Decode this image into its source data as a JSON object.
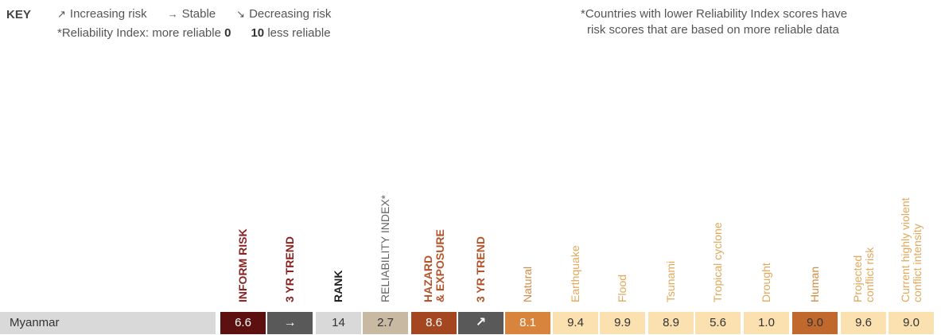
{
  "key": {
    "title": "KEY",
    "items": [
      {
        "icon": "arrow-up-right-icon",
        "glyph": "↗",
        "label": "Increasing risk"
      },
      {
        "icon": "arrow-right-icon",
        "glyph": "→",
        "label": "Stable"
      },
      {
        "icon": "arrow-down-right-icon",
        "glyph": "↘",
        "label": "Decreasing risk"
      }
    ],
    "reliability_prefix": "*Reliability Index: more reliable",
    "reliability_min": "0",
    "reliability_max": "10",
    "reliability_suffix": "less reliable"
  },
  "note": {
    "line1": "*Countries with lower Reliability Index scores have",
    "line2": "risk scores that are based on more reliable data"
  },
  "columns": [
    {
      "id": "inform-risk",
      "lines": [
        "INFORM RISK"
      ],
      "color": "#8b2323",
      "bold": true
    },
    {
      "id": "3yr-trend",
      "lines": [
        "3 YR TREND"
      ],
      "color": "#8b2323",
      "bold": true
    },
    {
      "id": "rank",
      "lines": [
        "RANK"
      ],
      "color": "#222222",
      "bold": true
    },
    {
      "id": "reliability-index",
      "lines": [
        "RELIABILITY INDEX*"
      ],
      "color": "#666666",
      "bold": false
    },
    {
      "id": "hazard-exposure",
      "lines": [
        "HAZARD",
        "& EXPOSURE"
      ],
      "color": "#b5532b",
      "bold": true
    },
    {
      "id": "hazard-3yr-trend",
      "lines": [
        "3 YR TREND"
      ],
      "color": "#b5532b",
      "bold": true
    },
    {
      "id": "natural",
      "lines": [
        "Natural"
      ],
      "color": "#d38a43",
      "bold": false
    },
    {
      "id": "earthquake",
      "lines": [
        "Earthquake"
      ],
      "color": "#e0a85a",
      "bold": false
    },
    {
      "id": "flood",
      "lines": [
        "Flood"
      ],
      "color": "#e0a85a",
      "bold": false
    },
    {
      "id": "tsunami",
      "lines": [
        "Tsunami"
      ],
      "color": "#e0a85a",
      "bold": false
    },
    {
      "id": "tropical-cyclone",
      "lines": [
        "Tropical cyclone"
      ],
      "color": "#e0a85a",
      "bold": false
    },
    {
      "id": "drought",
      "lines": [
        "Drought"
      ],
      "color": "#e0a85a",
      "bold": false
    },
    {
      "id": "human",
      "lines": [
        "Human"
      ],
      "color": "#d38a43",
      "bold": false
    },
    {
      "id": "projected-conflict-risk",
      "lines": [
        "Projected",
        "conflict risk"
      ],
      "color": "#e0a85a",
      "bold": false
    },
    {
      "id": "current-violent-conflict",
      "lines": [
        "Current highly violent",
        "conflict intensity"
      ],
      "color": "#e0a85a",
      "bold": false
    }
  ],
  "row": {
    "country": "Myanmar",
    "cells": [
      {
        "value": "6.6",
        "bg": "#5c1010",
        "fg": "#ffffff",
        "trend": false
      },
      {
        "value": "→",
        "icon": "arrow-right-icon",
        "bg": "#595959",
        "fg": "#ffffff",
        "trend": true
      },
      {
        "value": "14",
        "bg": "#d9d9d9",
        "fg": "#333333",
        "trend": false
      },
      {
        "value": "2.7",
        "bg": "#c8b9a3",
        "fg": "#333333",
        "trend": false
      },
      {
        "value": "8.6",
        "bg": "#a4461f",
        "fg": "#ffffff",
        "trend": false
      },
      {
        "value": "↗",
        "icon": "arrow-up-right-icon",
        "bg": "#595959",
        "fg": "#ffffff",
        "trend": true
      },
      {
        "value": "8.1",
        "bg": "#d9843c",
        "fg": "#ffffff",
        "trend": false
      },
      {
        "value": "9.4",
        "bg": "#fbe0b0",
        "fg": "#333333",
        "trend": false
      },
      {
        "value": "9.9",
        "bg": "#fbe0b0",
        "fg": "#333333",
        "trend": false
      },
      {
        "value": "8.9",
        "bg": "#fbe0b0",
        "fg": "#333333",
        "trend": false
      },
      {
        "value": "5.6",
        "bg": "#fbe0b0",
        "fg": "#333333",
        "trend": false
      },
      {
        "value": "1.0",
        "bg": "#fbe0b0",
        "fg": "#333333",
        "trend": false
      },
      {
        "value": "9.0",
        "bg": "#c1692d",
        "fg": "#333333",
        "trend": false
      },
      {
        "value": "9.6",
        "bg": "#fbe0b0",
        "fg": "#333333",
        "trend": false
      },
      {
        "value": "9.0",
        "bg": "#fbe0b0",
        "fg": "#333333",
        "trend": false
      }
    ]
  }
}
